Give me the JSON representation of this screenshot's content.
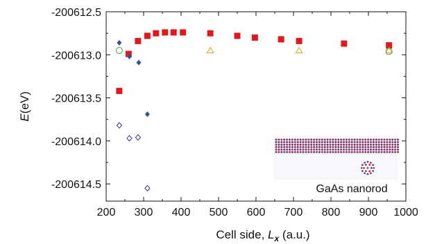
{
  "chart_data": {
    "type": "scatter",
    "title": "",
    "xlabel": {
      "prefix": "Cell side, ",
      "symbol": "L",
      "subscript": "x",
      "suffix": " (a.u.)"
    },
    "ylabel": {
      "symbol": "E",
      "suffix": "(eV)"
    },
    "xlim": [
      200,
      1000
    ],
    "ylim": [
      -200614.7,
      -200612.5
    ],
    "xticks": [
      200,
      300,
      400,
      500,
      600,
      700,
      800,
      900,
      1000
    ],
    "xtick_labels": [
      "200",
      "300",
      "400",
      "500",
      "600",
      "700",
      "800",
      "900",
      "1000"
    ],
    "yticks": [
      -200612.5,
      -200613.0,
      -200613.5,
      -200614.0,
      -200614.5
    ],
    "ytick_labels": [
      "-200612.5",
      "-200613.0",
      "-200613.5",
      "-200614.0",
      "-200614.5"
    ],
    "grid": false,
    "legend": null,
    "series": [
      {
        "marker": "filled-square",
        "color": "#e0191e",
        "points": [
          [
            235,
            -200613.42
          ],
          [
            260,
            -200612.99
          ],
          [
            285,
            -200612.84
          ],
          [
            310,
            -200612.78
          ],
          [
            333,
            -200612.75
          ],
          [
            357,
            -200612.74
          ],
          [
            380,
            -200612.74
          ],
          [
            405,
            -200612.74
          ],
          [
            478,
            -200612.75
          ],
          [
            550,
            -200612.78
          ],
          [
            597,
            -200612.8
          ],
          [
            667,
            -200612.82
          ],
          [
            715,
            -200612.84
          ],
          [
            835,
            -200612.87
          ],
          [
            955,
            -200612.89
          ]
        ]
      },
      {
        "marker": "filled-diamond",
        "color": "#2f4fa3",
        "points": [
          [
            235,
            -200612.86
          ],
          [
            262,
            -200613.02
          ],
          [
            287,
            -200613.09
          ],
          [
            310,
            -200613.69
          ]
        ]
      },
      {
        "marker": "open-diamond",
        "color": "#2b2f8f",
        "points": [
          [
            235,
            -200613.82
          ],
          [
            262,
            -200613.97
          ],
          [
            285,
            -200613.96
          ],
          [
            310,
            -200614.55
          ]
        ]
      },
      {
        "marker": "open-triangle",
        "color": "#e0a11b",
        "points": [
          [
            478,
            -200612.95
          ],
          [
            715,
            -200612.95
          ],
          [
            955,
            -200612.95
          ]
        ]
      },
      {
        "marker": "open-circle",
        "color": "#3daa3d",
        "points": [
          [
            235,
            -200612.95
          ],
          [
            955,
            -200612.96
          ]
        ]
      }
    ],
    "inset": {
      "label": "GaAs nanorod",
      "image": "gaas-nanorod-structure",
      "atom_colors": [
        "#d42a2a",
        "#3a4fb0"
      ]
    }
  }
}
